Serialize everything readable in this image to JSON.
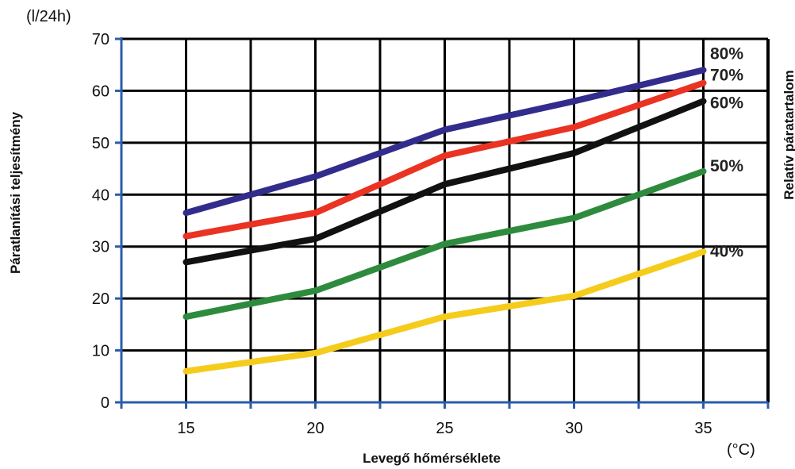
{
  "chart_data": {
    "type": "line",
    "ylabel": "Páratlanítási teljesítmény",
    "y_unit": "(l/24h)",
    "xlabel": "Levegő hőmérséklete",
    "x_unit": "(°C)",
    "right_label": "Relatív páratartalom",
    "x": [
      15,
      20,
      25,
      30,
      35
    ],
    "xlim": [
      12.5,
      37.5
    ],
    "ylim": [
      0,
      70
    ],
    "x_ticks": [
      "15",
      "20",
      "25",
      "30",
      "35"
    ],
    "y_ticks": [
      "0",
      "10",
      "20",
      "30",
      "40",
      "50",
      "60",
      "70"
    ],
    "grid": true,
    "series": [
      {
        "name": "80%",
        "color": "#322c8c",
        "values": [
          36.5,
          43.5,
          52.5,
          58,
          64
        ]
      },
      {
        "name": "70%",
        "color": "#ea3323",
        "values": [
          32,
          36.5,
          47.5,
          53,
          61.5
        ]
      },
      {
        "name": "60%",
        "color": "#111111",
        "values": [
          27,
          31.5,
          42,
          48,
          58
        ]
      },
      {
        "name": "50%",
        "color": "#2e8b3e",
        "values": [
          16.5,
          21.5,
          30.5,
          35.5,
          44.5
        ]
      },
      {
        "name": "40%",
        "color": "#f5cc1c",
        "values": [
          6,
          9.5,
          16.5,
          20.5,
          29
        ]
      }
    ]
  }
}
